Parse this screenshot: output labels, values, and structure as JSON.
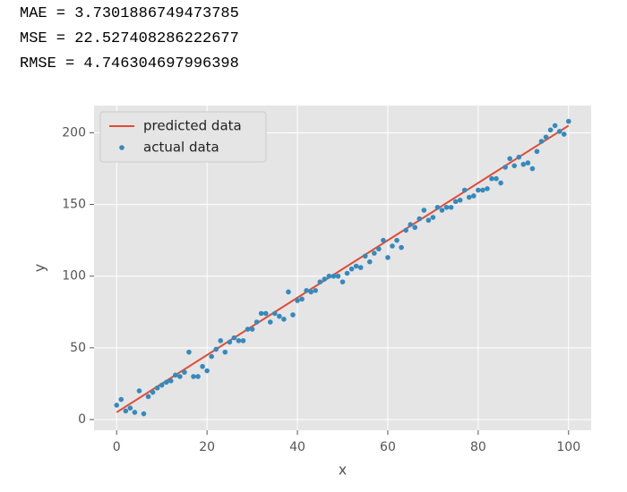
{
  "output_lines": [
    "MAE = 3.7301886749473785",
    "MSE = 22.527408286222677",
    "RMSE = 4.746304697996398"
  ],
  "chart_data": {
    "type": "scatter",
    "x_label": "x",
    "y_label": "y",
    "xlim": [
      -5,
      105
    ],
    "ylim": [
      -7.5,
      219
    ],
    "xticks": [
      0,
      20,
      40,
      60,
      80,
      100
    ],
    "yticks": [
      0,
      50,
      100,
      150,
      200
    ],
    "grid": true,
    "legend": "upper left",
    "series": [
      {
        "name": "predicted data",
        "type": "line",
        "color": "#e24a33",
        "x": [
          0,
          100
        ],
        "values": [
          5,
          205
        ]
      },
      {
        "name": "actual data",
        "type": "scatter",
        "color": "#348abd",
        "x": [
          0,
          1,
          2,
          3,
          4,
          5,
          6,
          7,
          8,
          9,
          10,
          11,
          12,
          13,
          14,
          15,
          16,
          17,
          18,
          19,
          20,
          21,
          22,
          23,
          24,
          25,
          26,
          27,
          28,
          29,
          30,
          31,
          32,
          33,
          34,
          35,
          36,
          37,
          38,
          39,
          40,
          41,
          42,
          43,
          44,
          45,
          46,
          47,
          48,
          49,
          50,
          51,
          52,
          53,
          54,
          55,
          56,
          57,
          58,
          59,
          60,
          61,
          62,
          63,
          64,
          65,
          66,
          67,
          68,
          69,
          70,
          71,
          72,
          73,
          74,
          75,
          76,
          77,
          78,
          79,
          80,
          81,
          82,
          83,
          84,
          85,
          86,
          87,
          88,
          89,
          90,
          91,
          92,
          93,
          94,
          95,
          96,
          97,
          98,
          99,
          100
        ],
        "values": [
          10,
          14,
          6,
          8,
          5,
          20,
          4,
          16,
          19,
          22,
          24,
          26,
          27,
          31,
          30,
          33,
          47,
          30,
          30,
          37,
          34,
          44,
          49,
          55,
          47,
          54,
          57,
          55,
          55,
          63,
          63,
          68,
          74,
          74,
          68,
          74,
          72,
          70,
          89,
          73,
          83,
          84,
          90,
          89,
          90,
          96,
          98,
          100,
          100,
          100,
          96,
          102,
          105,
          107,
          106,
          114,
          110,
          116,
          119,
          125,
          113,
          121,
          125,
          120,
          132,
          136,
          134,
          140,
          146,
          139,
          141,
          148,
          146,
          148,
          148,
          152,
          153,
          160,
          155,
          156,
          160,
          160,
          161,
          168,
          168,
          165,
          176,
          182,
          177,
          183,
          178,
          179,
          175,
          187,
          194,
          197,
          202,
          205,
          201,
          199,
          208
        ]
      }
    ]
  }
}
